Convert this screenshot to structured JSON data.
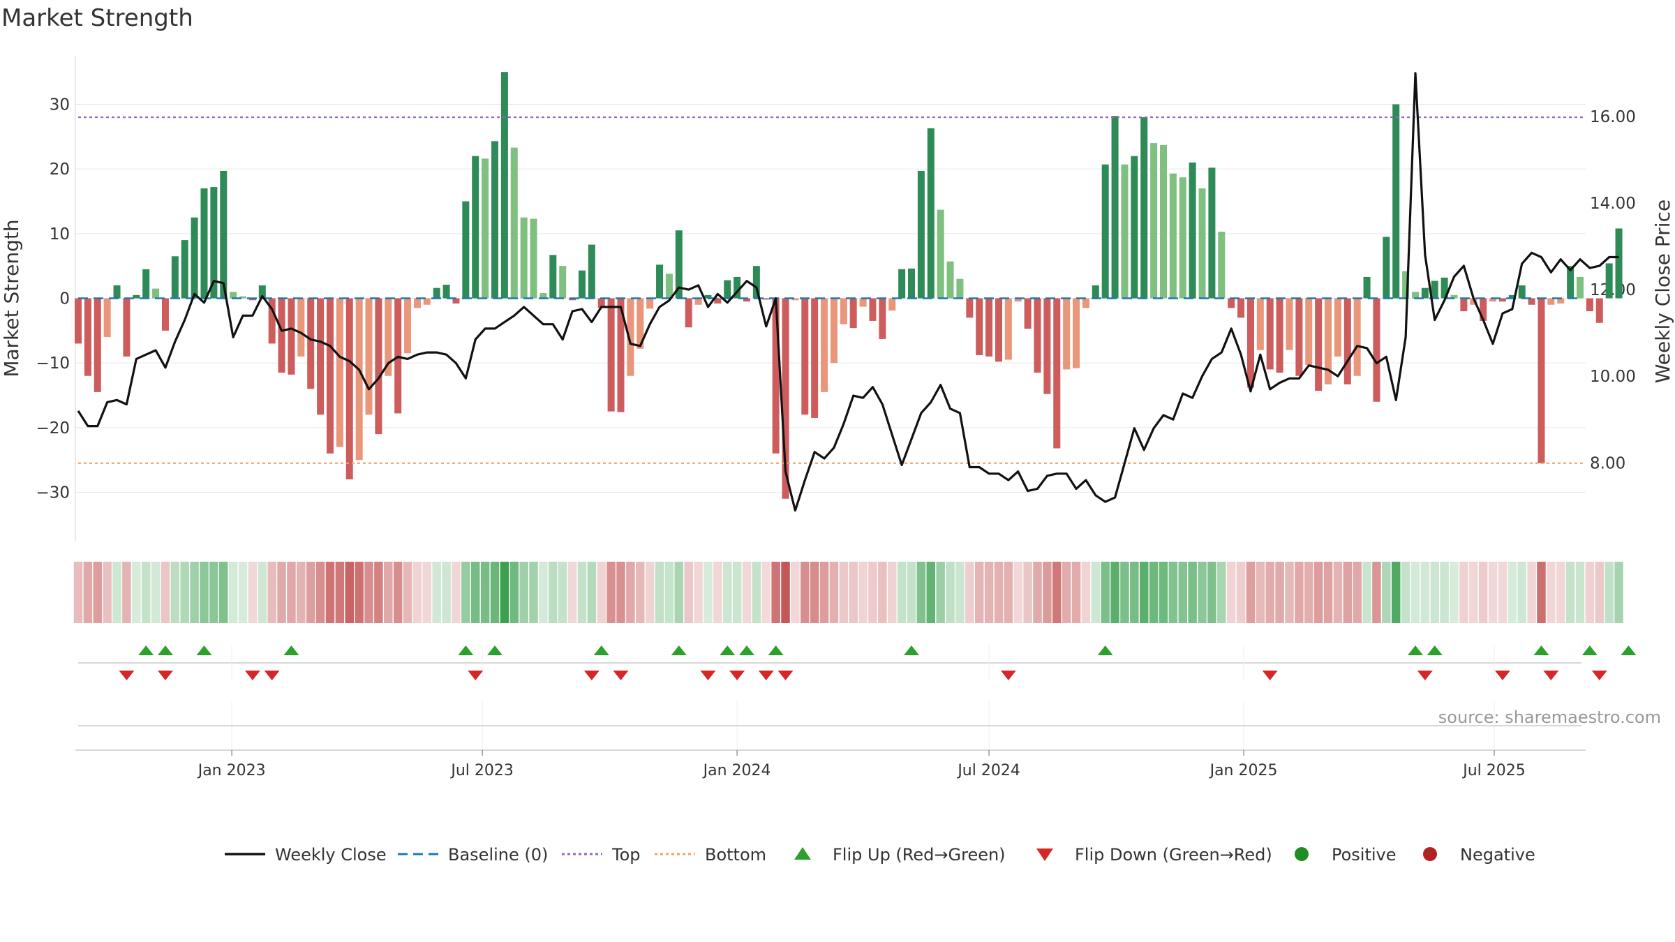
{
  "title": "Market Strength",
  "source": "source: sharemaestro.com",
  "colors": {
    "strong_green": "#2e8b57",
    "light_green": "#7fbf7f",
    "strong_red": "#cd5c5c",
    "light_red": "#e9967a",
    "close_line": "#111111",
    "baseline": "#1f77b4",
    "top": "#9467bd",
    "bottom": "#f4a261",
    "flip_up": "#2ca02c",
    "flip_down": "#d62728",
    "positive": "#228b22",
    "negative": "#b22222"
  },
  "chart_data": {
    "type": "bar",
    "title": "Market Strength",
    "ylabel": "Market Strength",
    "y2label": "Weekly Close Price",
    "ylim": [
      -37.5,
      37.5
    ],
    "y2lim": [
      6.2,
      17.4
    ],
    "yticks": [
      30,
      20,
      10,
      0,
      -10,
      -20,
      -30
    ],
    "ytick_labels": [
      "30",
      "20",
      "10",
      "0",
      "−10",
      "−20",
      "−30"
    ],
    "y2ticks": [
      16,
      14,
      12,
      10,
      8
    ],
    "y2tick_labels": [
      "16.00",
      "14.00",
      "12.00",
      "10.00",
      "8.00"
    ],
    "top_line": 28,
    "bottom_line": -25.5,
    "x_start": "2022-09-12",
    "x_end": "2025-09-01",
    "xticks": [
      "2023-01-01",
      "2023-07-01",
      "2024-01-01",
      "2024-07-01",
      "2025-01-01",
      "2025-07-01"
    ],
    "xtick_labels": [
      "Jan 2023",
      "Jul 2023",
      "Jan 2024",
      "Jul 2024",
      "Jan 2025",
      "Jul 2025"
    ],
    "strength": [
      -7,
      -12,
      -14.5,
      -6,
      2,
      -9,
      0.5,
      4.5,
      1.5,
      -5,
      6.5,
      9,
      12.5,
      17,
      17.2,
      19.7,
      1,
      0.3,
      -0.3,
      2,
      -7,
      -11.5,
      -11.8,
      -9,
      -14,
      -18,
      -24,
      -23,
      -28,
      -25,
      -18,
      -21,
      -12,
      -17.8,
      -8.5,
      -1.5,
      -1,
      1.6,
      2.1,
      -0.8,
      15,
      22,
      21.6,
      24.3,
      35,
      23.3,
      12.5,
      12.3,
      0.8,
      6.7,
      5,
      -0.3,
      4.3,
      8.3,
      -1.5,
      -17.5,
      -17.6,
      -12,
      -7.8,
      -1.6,
      5.2,
      3.8,
      10.5,
      -4.5,
      -1,
      0.5,
      -0.8,
      2.8,
      3.3,
      -0.5,
      5,
      -0.2,
      -24,
      -31,
      -0.3,
      -18,
      -18.5,
      -14.5,
      -10,
      -4,
      -4.6,
      -1.3,
      -3.5,
      -6.3,
      -1.9,
      4.5,
      4.6,
      19.7,
      26.3,
      13.7,
      5.7,
      3,
      -3,
      -8.8,
      -9,
      -9.8,
      -9.5,
      -0.5,
      -4.7,
      -11.5,
      -14.8,
      -23.2,
      -11,
      -10.8,
      -1.5,
      2,
      20.7,
      28.2,
      20.7,
      22,
      28,
      24,
      23.7,
      19.3,
      18.7,
      21,
      17,
      20.2,
      10.3,
      -1.5,
      -3,
      -13.8,
      -8,
      -11,
      -11.5,
      -8,
      -12,
      -10.3,
      -14.3,
      -13.3,
      -9,
      -13.3,
      -12,
      3.3,
      -16,
      9.5,
      30,
      4.2,
      1,
      1.6,
      2.7,
      3.2,
      0.5,
      -2,
      -1,
      -3.5,
      -0.5,
      -0.5,
      0.5,
      2,
      -1,
      -25.5,
      -1,
      -0.8,
      5,
      3.3,
      -2,
      -3.8,
      5.4,
      10.8
    ],
    "close": [
      9.2,
      8.85,
      8.85,
      9.4,
      9.45,
      9.35,
      10.4,
      10.5,
      10.6,
      10.2,
      10.8,
      11.3,
      11.9,
      11.7,
      12.2,
      12.15,
      10.9,
      11.4,
      11.4,
      11.85,
      11.55,
      11.05,
      11.1,
      11.0,
      10.85,
      10.8,
      10.7,
      10.45,
      10.35,
      10.15,
      9.7,
      9.95,
      10.3,
      10.45,
      10.4,
      10.5,
      10.55,
      10.55,
      10.5,
      10.3,
      9.95,
      10.85,
      11.1,
      11.1,
      11.25,
      11.4,
      11.6,
      11.4,
      11.2,
      11.2,
      10.85,
      11.5,
      11.55,
      11.25,
      11.6,
      11.6,
      11.6,
      10.75,
      10.7,
      11.2,
      11.6,
      11.75,
      12.05,
      12.0,
      12.1,
      11.6,
      11.9,
      11.7,
      11.95,
      12.2,
      12.05,
      11.15,
      11.8,
      7.8,
      6.9,
      7.6,
      8.25,
      8.1,
      8.35,
      8.9,
      9.55,
      9.5,
      9.75,
      9.35,
      8.65,
      7.95,
      8.55,
      9.15,
      9.4,
      9.8,
      9.25,
      9.15,
      7.9,
      7.9,
      7.75,
      7.75,
      7.6,
      7.8,
      7.35,
      7.4,
      7.7,
      7.75,
      7.75,
      7.4,
      7.6,
      7.25,
      7.1,
      7.2,
      8.0,
      8.8,
      8.3,
      8.8,
      9.1,
      9.0,
      9.6,
      9.5,
      10.0,
      10.4,
      10.55,
      11.1,
      10.5,
      9.65,
      10.5,
      9.7,
      9.85,
      9.95,
      9.95,
      10.25,
      10.2,
      10.15,
      10.0,
      10.35,
      10.7,
      10.65,
      10.3,
      10.45,
      9.45,
      10.9,
      17.0,
      12.8,
      11.3,
      11.75,
      12.3,
      12.55,
      11.8,
      11.3,
      10.75,
      11.45,
      11.55,
      12.6,
      12.85,
      12.75,
      12.4,
      12.7,
      12.45,
      12.7,
      12.5,
      12.55,
      12.75,
      12.75
    ],
    "flip_up": [
      "2022-10-31",
      "2022-11-14",
      "2022-12-12",
      "2023-02-13",
      "2023-06-19",
      "2023-07-10",
      "2023-09-25",
      "2023-11-20",
      "2023-12-25",
      "2024-01-08",
      "2024-01-29",
      "2024-05-06",
      "2024-09-23",
      "2025-05-05",
      "2025-05-19",
      "2025-08-04",
      "2025-09-08",
      "2025-10-06"
    ],
    "flip_down": [
      "2022-10-17",
      "2022-11-14",
      "2023-01-16",
      "2023-01-30",
      "2023-06-26",
      "2023-09-18",
      "2023-10-09",
      "2023-12-11",
      "2024-01-01",
      "2024-01-22",
      "2024-02-05",
      "2024-07-15",
      "2025-01-20",
      "2025-05-12",
      "2025-07-07",
      "2025-08-11",
      "2025-09-15"
    ]
  },
  "legend": {
    "items": [
      {
        "label": "Weekly Close",
        "icon": "solid-line"
      },
      {
        "label": "Baseline (0)",
        "icon": "dashed-line"
      },
      {
        "label": "Top",
        "icon": "dotted-line"
      },
      {
        "label": "Bottom",
        "icon": "dotted-line"
      },
      {
        "label": "Flip Up (Red→Green)",
        "icon": "triangle-up"
      },
      {
        "label": "Flip Down (Green→Red)",
        "icon": "triangle-down"
      },
      {
        "label": "Positive",
        "icon": "circle"
      },
      {
        "label": "Negative",
        "icon": "circle"
      }
    ]
  }
}
